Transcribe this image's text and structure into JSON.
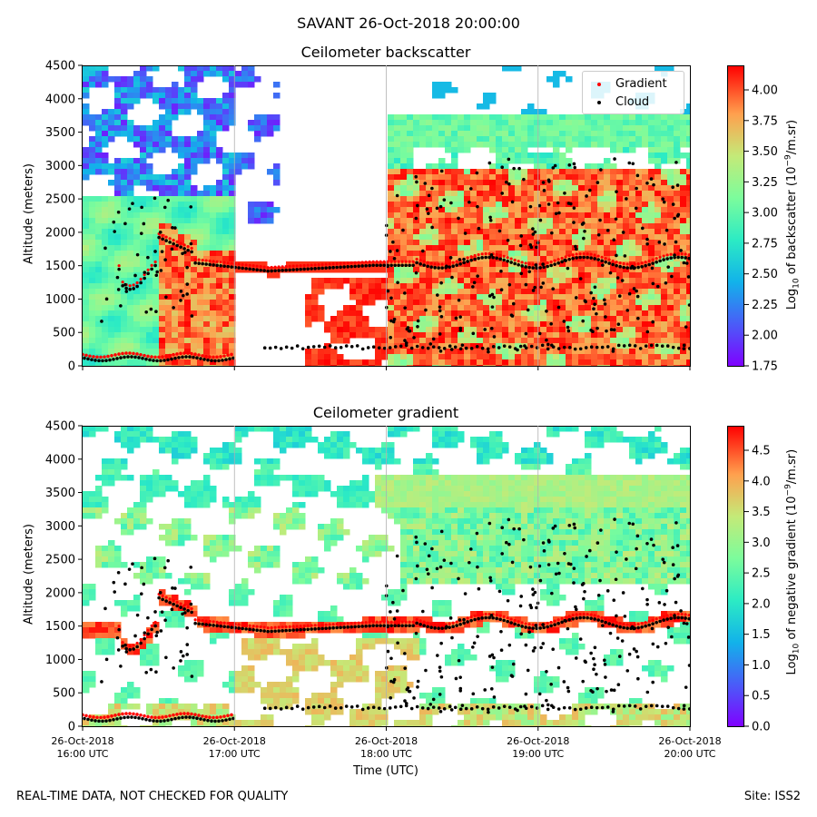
{
  "figure": {
    "suptitle": "SAVANT 26-Oct-2018 20:00:00",
    "footer_left": "REAL-TIME DATA, NOT CHECKED FOR QUALITY",
    "footer_right": "Site: ISS2"
  },
  "colors": {
    "cloud_marker": "#000000",
    "gradient_marker": "#ff0000",
    "colormap": "rainbow"
  },
  "chart_data": [
    {
      "type": "heatmap",
      "title": "Ceilometer backscatter",
      "ylabel": "Altitude (meters)",
      "xlabel": "",
      "ylim": [
        0,
        4500
      ],
      "yticks": [
        "0",
        "500",
        "1000",
        "1500",
        "2000",
        "2500",
        "3000",
        "3500",
        "4000",
        "4500"
      ],
      "xticks": [],
      "colorbar": {
        "label": "Log10 of backscatter (10^-9/m.sr)",
        "range": [
          1.75,
          4.2
        ],
        "ticks": [
          "1.75",
          "2.00",
          "2.25",
          "2.50",
          "2.75",
          "3.00",
          "3.25",
          "3.50",
          "3.75",
          "4.00"
        ]
      },
      "legend": {
        "location": "upper right",
        "entries": [
          {
            "label": "Gradient",
            "color": "#ff0000"
          },
          {
            "label": "Cloud",
            "color": "#000000"
          }
        ]
      },
      "grid": "vertical at hours"
    },
    {
      "type": "heatmap",
      "title": "Ceilometer gradient",
      "ylabel": "Altitude (meters)",
      "xlabel": "Time (UTC)",
      "ylim": [
        0,
        4500
      ],
      "yticks": [
        "0",
        "500",
        "1000",
        "1500",
        "2000",
        "2500",
        "3000",
        "3500",
        "4000",
        "4500"
      ],
      "xticks": [
        [
          "26-Oct-2018",
          "16:00 UTC"
        ],
        [
          "26-Oct-2018",
          "17:00 UTC"
        ],
        [
          "26-Oct-2018",
          "18:00 UTC"
        ],
        [
          "26-Oct-2018",
          "19:00 UTC"
        ],
        [
          "26-Oct-2018",
          "20:00 UTC"
        ]
      ],
      "colorbar": {
        "label": "Log10 of negative gradient (10^-9/m.sr)",
        "range": [
          0,
          4.9
        ],
        "ticks": [
          "0.0",
          "0.5",
          "1.0",
          "1.5",
          "2.0",
          "2.5",
          "3.0",
          "3.5",
          "4.0",
          "4.5"
        ]
      },
      "grid": "vertical at hours"
    }
  ]
}
